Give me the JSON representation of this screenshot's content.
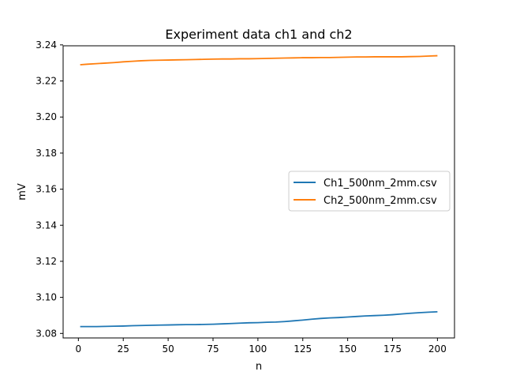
{
  "chart_data": {
    "type": "line",
    "title": "Experiment data ch1 and ch2",
    "xlabel": "n",
    "ylabel": "mV",
    "xlim": [
      -8.5,
      209.5
    ],
    "ylim": [
      3.0775,
      3.2395
    ],
    "xticks": [
      0,
      25,
      50,
      75,
      100,
      125,
      150,
      175,
      200
    ],
    "yticks": [
      3.08,
      3.1,
      3.12,
      3.14,
      3.16,
      3.18,
      3.2,
      3.22,
      3.24
    ],
    "ytick_labels": [
      "3.08",
      "3.10",
      "3.12",
      "3.14",
      "3.16",
      "3.18",
      "3.20",
      "3.22",
      "3.24"
    ],
    "legend_position": "center-right",
    "grid": false,
    "series": [
      {
        "name": "Ch1_500nm_2mm.csv",
        "color": "#1f77b4",
        "x": [
          1,
          5,
          10,
          15,
          20,
          25,
          30,
          35,
          40,
          45,
          50,
          55,
          60,
          65,
          70,
          75,
          80,
          85,
          90,
          95,
          100,
          105,
          110,
          115,
          120,
          125,
          130,
          135,
          140,
          145,
          150,
          155,
          160,
          165,
          170,
          175,
          180,
          185,
          190,
          195,
          200
        ],
        "y": [
          3.0838,
          3.0838,
          3.0838,
          3.0839,
          3.084,
          3.0841,
          3.0843,
          3.0844,
          3.0845,
          3.0846,
          3.0847,
          3.0848,
          3.0849,
          3.0849,
          3.085,
          3.0851,
          3.0853,
          3.0855,
          3.0857,
          3.0859,
          3.086,
          3.0862,
          3.0863,
          3.0866,
          3.087,
          3.0874,
          3.0879,
          3.0883,
          3.0886,
          3.0888,
          3.0891,
          3.0894,
          3.0897,
          3.0899,
          3.0901,
          3.0904,
          3.0908,
          3.0912,
          3.0915,
          3.0918,
          3.092
        ]
      },
      {
        "name": "Ch2_500nm_2mm.csv",
        "color": "#ff7f0e",
        "x": [
          1,
          5,
          10,
          15,
          20,
          25,
          30,
          35,
          40,
          45,
          50,
          55,
          60,
          65,
          70,
          75,
          80,
          85,
          90,
          95,
          100,
          105,
          110,
          115,
          120,
          125,
          130,
          135,
          140,
          145,
          150,
          155,
          160,
          165,
          170,
          175,
          180,
          185,
          190,
          195,
          200
        ],
        "y": [
          3.229,
          3.2293,
          3.2296,
          3.2299,
          3.2302,
          3.2306,
          3.2309,
          3.2312,
          3.2314,
          3.2315,
          3.2316,
          3.2317,
          3.2318,
          3.2319,
          3.232,
          3.2321,
          3.2322,
          3.2322,
          3.2323,
          3.2323,
          3.2324,
          3.2325,
          3.2326,
          3.2327,
          3.2328,
          3.2329,
          3.2329,
          3.233,
          3.233,
          3.2331,
          3.2332,
          3.2333,
          3.2333,
          3.2334,
          3.2334,
          3.2334,
          3.2334,
          3.2335,
          3.2336,
          3.2338,
          3.234
        ]
      }
    ]
  }
}
